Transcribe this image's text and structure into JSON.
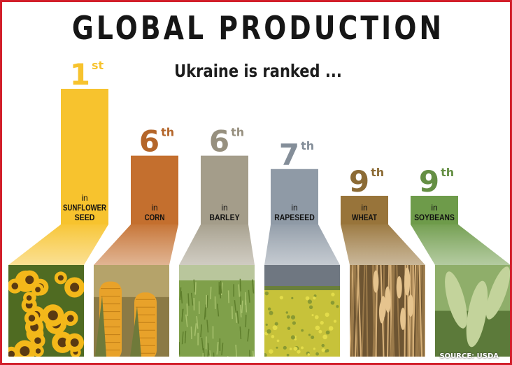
{
  "header": {
    "title": "GLOBAL PRODUCTION",
    "subtitle": "Ukraine is ranked ..."
  },
  "source": "SOURCE: USDA",
  "chart_data": {
    "type": "bar",
    "title": "GLOBAL PRODUCTION",
    "subtitle": "Ukraine is ranked ...",
    "xlabel": "",
    "ylabel": "",
    "grid": false,
    "categories": [
      "SUNFLOWER SEED",
      "CORN",
      "BARLEY",
      "RAPESEED",
      "WHEAT",
      "SOYBEANS"
    ],
    "values": [
      1,
      6,
      6,
      7,
      9,
      9
    ],
    "rank_labels": [
      {
        "num": "1",
        "suffix": "st"
      },
      {
        "num": "6",
        "suffix": "th"
      },
      {
        "num": "6",
        "suffix": "th"
      },
      {
        "num": "7",
        "suffix": "th"
      },
      {
        "num": "9",
        "suffix": "th"
      },
      {
        "num": "9",
        "suffix": "th"
      }
    ],
    "bar_labels": [
      {
        "prefix": "in",
        "lines": [
          "SUNFLOWER",
          "SEED"
        ]
      },
      {
        "prefix": "in",
        "lines": [
          "CORN"
        ]
      },
      {
        "prefix": "in",
        "lines": [
          "BARLEY"
        ]
      },
      {
        "prefix": "in",
        "lines": [
          "RAPESEED"
        ]
      },
      {
        "prefix": "in",
        "lines": [
          "WHEAT"
        ]
      },
      {
        "prefix": "in",
        "lines": [
          "SOYBEANS"
        ]
      }
    ],
    "colors": [
      "#f7c32e",
      "#c46f2e",
      "#a49d8a",
      "#8f9aa6",
      "#98743a",
      "#6e9b4a"
    ],
    "photos": [
      "sunflower",
      "corn",
      "barley",
      "rapeseed",
      "wheat",
      "soybeans"
    ]
  }
}
